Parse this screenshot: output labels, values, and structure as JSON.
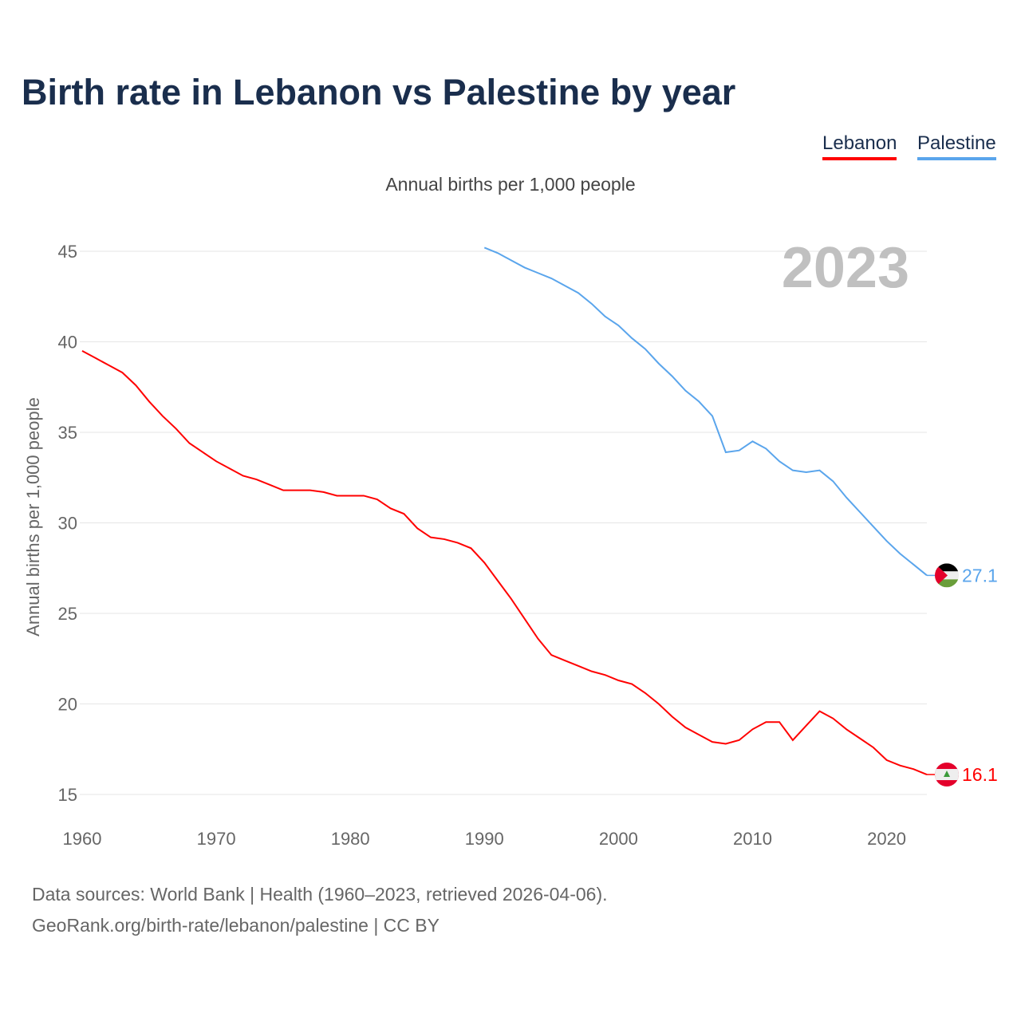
{
  "title": "Birth rate in Lebanon vs Palestine by year",
  "footer": {
    "line1": "Data sources: World Bank | Health (1960–2023, retrieved 2026-04-06).",
    "line2": "GeoRank.org/birth-rate/lebanon/palestine | CC BY"
  },
  "chart_data": {
    "type": "line",
    "title": "Birth rate in Lebanon vs Palestine by year",
    "subtitle": "Annual births per 1,000 people",
    "ylabel": "Annual births per 1,000 people",
    "xlabel": "",
    "year_label": "2023",
    "xlim": [
      1960,
      2023
    ],
    "ylim": [
      15,
      45
    ],
    "x_ticks": [
      "1960",
      "1970",
      "1980",
      "1990",
      "2000",
      "2010",
      "2020"
    ],
    "y_ticks": [
      "15",
      "20",
      "25",
      "30",
      "35",
      "40",
      "45"
    ],
    "grid": true,
    "legend_position": "top-right",
    "series": [
      {
        "name": "Lebanon",
        "color": "#ff0000",
        "flag": "lebanon-flag",
        "end_label": "16.1",
        "start_year": 1960,
        "values": [
          39.5,
          39.1,
          38.7,
          38.3,
          37.6,
          36.7,
          35.9,
          35.2,
          34.4,
          33.9,
          33.4,
          33.0,
          32.6,
          32.4,
          32.1,
          31.8,
          31.8,
          31.8,
          31.7,
          31.5,
          31.5,
          31.5,
          31.3,
          30.8,
          30.5,
          29.7,
          29.2,
          29.1,
          28.9,
          28.6,
          27.8,
          26.8,
          25.8,
          24.7,
          23.6,
          22.7,
          22.4,
          22.1,
          21.8,
          21.6,
          21.3,
          21.1,
          20.6,
          20.0,
          19.3,
          18.7,
          18.3,
          17.9,
          17.8,
          18.0,
          18.6,
          19.0,
          19.0,
          18.0,
          18.8,
          19.6,
          19.2,
          18.6,
          18.1,
          17.6,
          16.9,
          16.6,
          16.4,
          16.1
        ]
      },
      {
        "name": "Palestine",
        "color": "#5aa5ec",
        "flag": "palestine-flag",
        "end_label": "27.1",
        "start_year": 1990,
        "values": [
          45.2,
          44.9,
          44.5,
          44.1,
          43.8,
          43.5,
          43.1,
          42.7,
          42.1,
          41.4,
          40.9,
          40.2,
          39.6,
          38.8,
          38.1,
          37.3,
          36.7,
          35.9,
          33.9,
          34.0,
          34.5,
          34.1,
          33.4,
          32.9,
          32.8,
          32.9,
          32.3,
          31.4,
          30.6,
          29.8,
          29.0,
          28.3,
          27.7,
          27.1
        ]
      }
    ]
  }
}
